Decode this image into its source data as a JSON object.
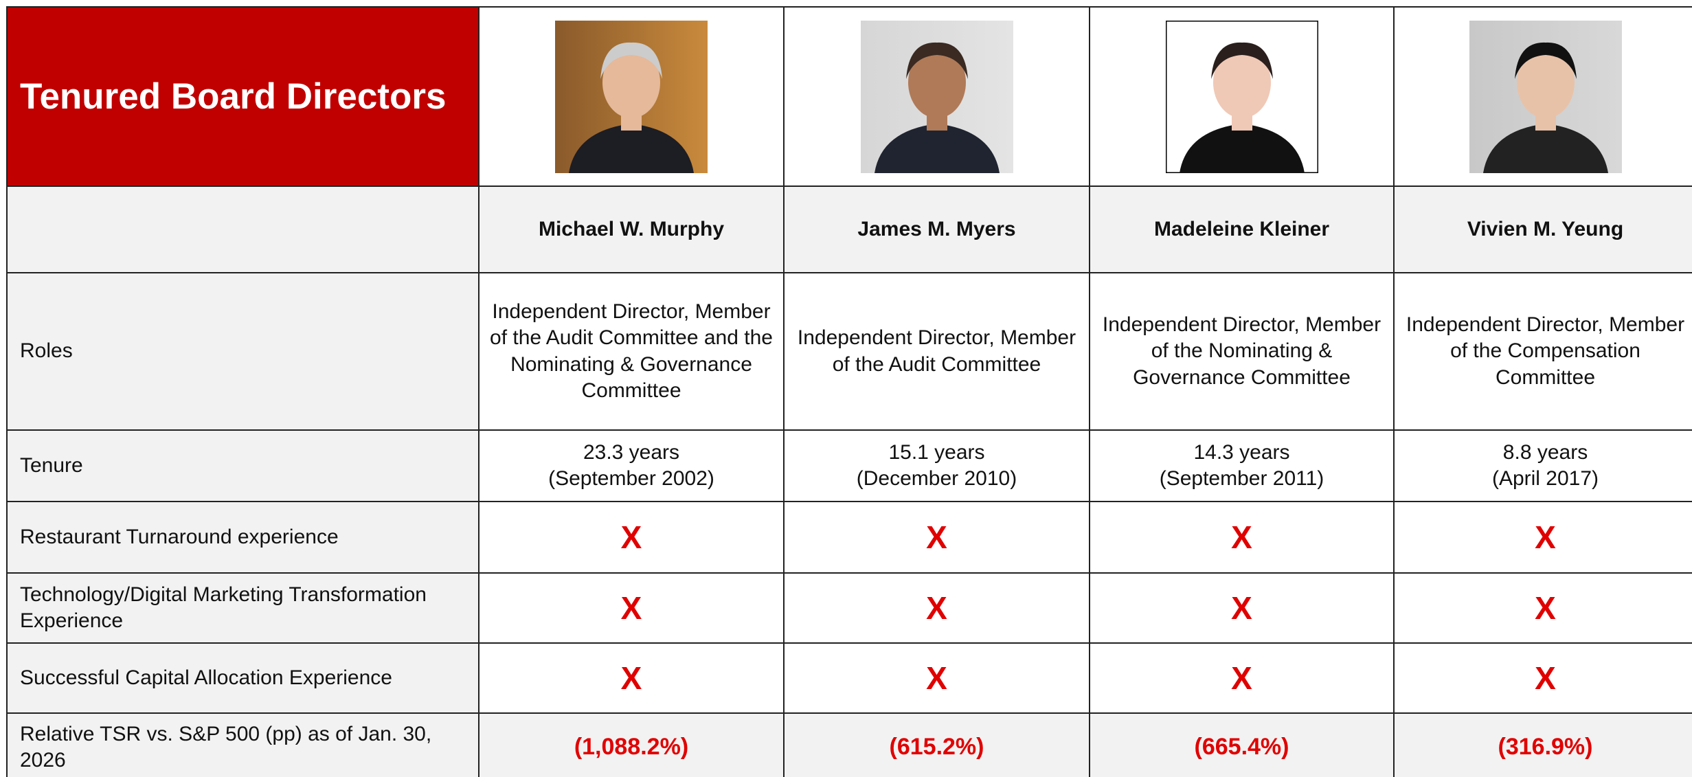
{
  "title": "Tenured Board Directors",
  "directors": [
    {
      "name": "Michael W. Murphy",
      "roles": "Independent Director, Member of the Audit Committee and the Nominating & Governance Committee",
      "tenure": [
        "23.3 years",
        "(September 2002)"
      ]
    },
    {
      "name": "James M. Myers",
      "roles": "Independent Director, Member of the Audit Committee",
      "tenure": [
        "15.1 years",
        "(December 2010)"
      ]
    },
    {
      "name": "Madeleine Kleiner",
      "roles": "Independent Director, Member of the Nominating & Governance Committee",
      "tenure": [
        "14.3 years",
        "(September 2011)"
      ]
    },
    {
      "name": "Vivien M. Yeung",
      "roles": "Independent Director, Member of the Compensation Committee",
      "tenure": [
        "8.8 years",
        "(April 2017)"
      ]
    }
  ],
  "row_labels": {
    "roles": "Roles",
    "tenure": "Tenure"
  },
  "criteria": [
    {
      "label": "Restaurant Turnaround experience",
      "values": [
        "X",
        "X",
        "X",
        "X"
      ]
    },
    {
      "label": "Technology/Digital Marketing Transformation Experience",
      "values": [
        "X",
        "X",
        "X",
        "X"
      ]
    },
    {
      "label": "Successful Capital Allocation Experience",
      "values": [
        "X",
        "X",
        "X",
        "X"
      ]
    }
  ],
  "tsr": {
    "label": "Relative TSR vs. S&P 500 (pp) as of Jan. 30, 2026",
    "values": [
      "(1,088.2%)",
      "(615.2%)",
      "(665.4%)",
      "(316.9%)"
    ]
  }
}
